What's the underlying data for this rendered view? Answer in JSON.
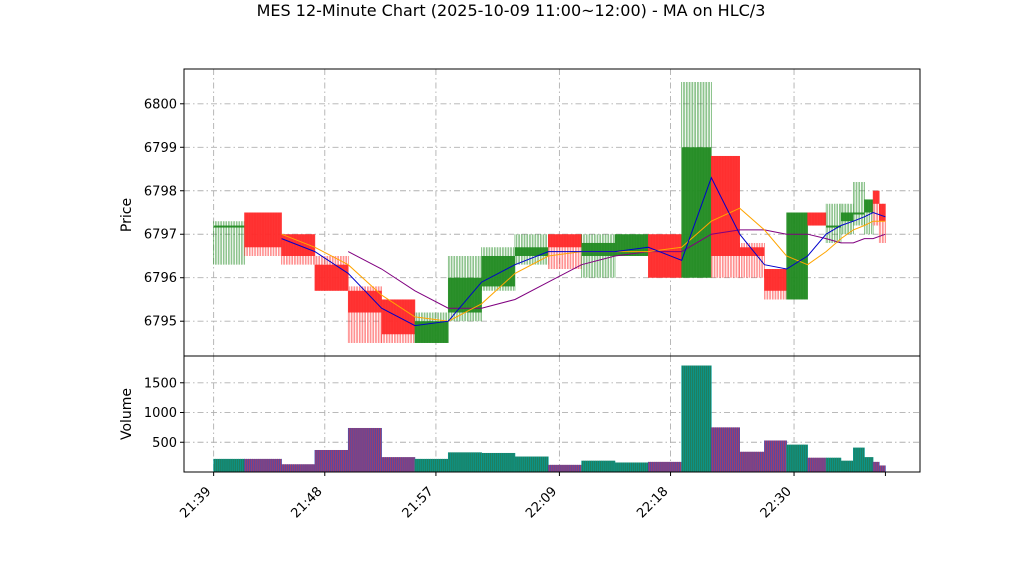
{
  "chart_data": {
    "type": "candlestick",
    "title": "MES 12-Minute Chart (2025-10-09 11:00~12:00) - MA on HLC/3",
    "price_panel": {
      "ylabel": "Price",
      "ylim": [
        6794.2,
        6800.8
      ],
      "yticks": [
        6795,
        6796,
        6797,
        6798,
        6799,
        6800
      ],
      "grid": true
    },
    "volume_panel": {
      "ylabel": "Volume",
      "ylim": [
        0,
        1950
      ],
      "yticks": [
        500,
        1000,
        1500
      ],
      "grid": true
    },
    "x_ticks": [
      "21:39",
      "21:48",
      "21:57",
      "22:09",
      "22:18",
      "22:30"
    ],
    "x_tick_positions": [
      0,
      9,
      18,
      28,
      37,
      47
    ],
    "colors": {
      "up": "#228B22",
      "down": "#FF2A2A",
      "ma_fast": "#0000CC",
      "ma_mid": "#FFA500",
      "ma_slow": "#800080"
    },
    "bars": [
      {
        "t": 0,
        "dur": 2.5,
        "o": 6797.2,
        "h": 6797.3,
        "l": 6796.3,
        "c": 6797.2,
        "v": 220
      },
      {
        "t": 2.5,
        "dur": 3,
        "o": 6797.5,
        "h": 6797.5,
        "l": 6796.5,
        "c": 6796.7,
        "v": 220
      },
      {
        "t": 5.5,
        "dur": 2.7,
        "o": 6797.0,
        "h": 6797.0,
        "l": 6796.3,
        "c": 6796.5,
        "v": 130
      },
      {
        "t": 8.2,
        "dur": 2.7,
        "o": 6796.3,
        "h": 6796.5,
        "l": 6795.7,
        "c": 6795.7,
        "v": 370
      },
      {
        "t": 10.9,
        "dur": 2.7,
        "o": 6795.7,
        "h": 6795.8,
        "l": 6794.5,
        "c": 6795.2,
        "v": 740
      },
      {
        "t": 13.6,
        "dur": 2.7,
        "o": 6795.5,
        "h": 6795.5,
        "l": 6794.5,
        "c": 6794.7,
        "v": 250
      },
      {
        "t": 16.3,
        "dur": 2.7,
        "o": 6794.5,
        "h": 6795.2,
        "l": 6794.5,
        "c": 6795.0,
        "v": 220
      },
      {
        "t": 19.0,
        "dur": 2.7,
        "o": 6795.2,
        "h": 6796.5,
        "l": 6795.0,
        "c": 6796.0,
        "v": 330
      },
      {
        "t": 21.7,
        "dur": 2.7,
        "o": 6795.8,
        "h": 6796.7,
        "l": 6795.7,
        "c": 6796.5,
        "v": 320
      },
      {
        "t": 24.4,
        "dur": 2.7,
        "o": 6796.5,
        "h": 6797.0,
        "l": 6796.3,
        "c": 6796.7,
        "v": 260
      },
      {
        "t": 27.1,
        "dur": 2.7,
        "o": 6797.0,
        "h": 6797.0,
        "l": 6796.2,
        "c": 6796.7,
        "v": 120
      },
      {
        "t": 29.8,
        "dur": 2.7,
        "o": 6796.5,
        "h": 6797.0,
        "l": 6796.0,
        "c": 6796.8,
        "v": 190
      },
      {
        "t": 32.5,
        "dur": 2.7,
        "o": 6796.5,
        "h": 6797.0,
        "l": 6796.5,
        "c": 6797.0,
        "v": 160
      },
      {
        "t": 35.2,
        "dur": 2.7,
        "o": 6797.0,
        "h": 6797.0,
        "l": 6796.0,
        "c": 6796.0,
        "v": 170
      },
      {
        "t": 37.9,
        "dur": 2.4,
        "o": 6796.0,
        "h": 6800.5,
        "l": 6796.0,
        "c": 6799.0,
        "v": 1790
      },
      {
        "t": 40.3,
        "dur": 2.3,
        "o": 6798.8,
        "h": 6798.8,
        "l": 6796.0,
        "c": 6796.5,
        "v": 750
      },
      {
        "t": 42.6,
        "dur": 2.0,
        "o": 6796.7,
        "h": 6796.8,
        "l": 6796.0,
        "c": 6796.5,
        "v": 340
      },
      {
        "t": 44.6,
        "dur": 1.8,
        "o": 6796.2,
        "h": 6796.2,
        "l": 6795.5,
        "c": 6795.7,
        "v": 530
      },
      {
        "t": 46.4,
        "dur": 1.7,
        "o": 6795.5,
        "h": 6797.5,
        "l": 6795.5,
        "c": 6797.5,
        "v": 460
      },
      {
        "t": 48.1,
        "dur": 1.5,
        "o": 6797.5,
        "h": 6797.5,
        "l": 6797.2,
        "c": 6797.2,
        "v": 240
      },
      {
        "t": 49.6,
        "dur": 1.2,
        "o": 6797.2,
        "h": 6797.7,
        "l": 6796.8,
        "c": 6797.2,
        "v": 240
      },
      {
        "t": 50.8,
        "dur": 1.0,
        "o": 6797.3,
        "h": 6797.7,
        "l": 6797.0,
        "c": 6797.5,
        "v": 190
      },
      {
        "t": 51.8,
        "dur": 0.9,
        "o": 6797.5,
        "h": 6798.2,
        "l": 6797.2,
        "c": 6797.5,
        "v": 410
      },
      {
        "t": 52.7,
        "dur": 0.7,
        "o": 6797.5,
        "h": 6797.8,
        "l": 6797.0,
        "c": 6797.8,
        "v": 250
      },
      {
        "t": 53.4,
        "dur": 0.5,
        "o": 6798.0,
        "h": 6798.0,
        "l": 6797.2,
        "c": 6797.7,
        "v": 170
      },
      {
        "t": 53.9,
        "dur": 0.5,
        "o": 6797.7,
        "h": 6797.7,
        "l": 6796.8,
        "c": 6797.3,
        "v": 110
      }
    ],
    "ma_fast": [
      [
        5.5,
        6796.9
      ],
      [
        8.2,
        6796.6
      ],
      [
        10.9,
        6796.1
      ],
      [
        13.6,
        6795.3
      ],
      [
        16.3,
        6794.9
      ],
      [
        19.0,
        6795.0
      ],
      [
        21.7,
        6795.9
      ],
      [
        24.4,
        6796.3
      ],
      [
        27.1,
        6796.6
      ],
      [
        29.8,
        6796.6
      ],
      [
        32.5,
        6796.6
      ],
      [
        35.2,
        6796.7
      ],
      [
        37.9,
        6796.4
      ],
      [
        40.3,
        6798.3
      ],
      [
        42.6,
        6797.0
      ],
      [
        44.6,
        6796.3
      ],
      [
        46.4,
        6796.2
      ],
      [
        48.1,
        6796.5
      ],
      [
        49.6,
        6797.0
      ],
      [
        50.8,
        6797.2
      ],
      [
        51.8,
        6797.3
      ],
      [
        52.7,
        6797.4
      ],
      [
        53.4,
        6797.5
      ],
      [
        54.4,
        6797.4
      ]
    ],
    "ma_mid": [
      [
        5.5,
        6797.0
      ],
      [
        8.2,
        6796.7
      ],
      [
        10.9,
        6796.3
      ],
      [
        13.6,
        6795.6
      ],
      [
        16.3,
        6795.1
      ],
      [
        19.0,
        6795.0
      ],
      [
        21.7,
        6795.4
      ],
      [
        24.4,
        6796.1
      ],
      [
        27.1,
        6796.5
      ],
      [
        29.8,
        6796.6
      ],
      [
        32.5,
        6796.6
      ],
      [
        35.2,
        6796.6
      ],
      [
        37.9,
        6796.7
      ],
      [
        40.3,
        6797.3
      ],
      [
        42.6,
        6797.6
      ],
      [
        44.6,
        6797.1
      ],
      [
        46.4,
        6796.5
      ],
      [
        48.1,
        6796.3
      ],
      [
        49.6,
        6796.6
      ],
      [
        50.8,
        6796.9
      ],
      [
        51.8,
        6797.1
      ],
      [
        52.7,
        6797.2
      ],
      [
        53.4,
        6797.3
      ],
      [
        54.4,
        6797.3
      ]
    ],
    "ma_slow": [
      [
        10.9,
        6796.6
      ],
      [
        13.6,
        6796.2
      ],
      [
        16.3,
        6795.7
      ],
      [
        19.0,
        6795.3
      ],
      [
        21.7,
        6795.3
      ],
      [
        24.4,
        6795.5
      ],
      [
        27.1,
        6795.9
      ],
      [
        29.8,
        6796.3
      ],
      [
        32.5,
        6796.5
      ],
      [
        35.2,
        6796.6
      ],
      [
        37.9,
        6796.6
      ],
      [
        40.3,
        6797.0
      ],
      [
        42.6,
        6797.1
      ],
      [
        44.6,
        6797.1
      ],
      [
        46.4,
        6797.0
      ],
      [
        48.1,
        6797.0
      ],
      [
        49.6,
        6796.9
      ],
      [
        50.8,
        6796.8
      ],
      [
        51.8,
        6796.8
      ],
      [
        52.7,
        6796.9
      ],
      [
        53.4,
        6796.9
      ],
      [
        54.4,
        6797.0
      ]
    ]
  }
}
